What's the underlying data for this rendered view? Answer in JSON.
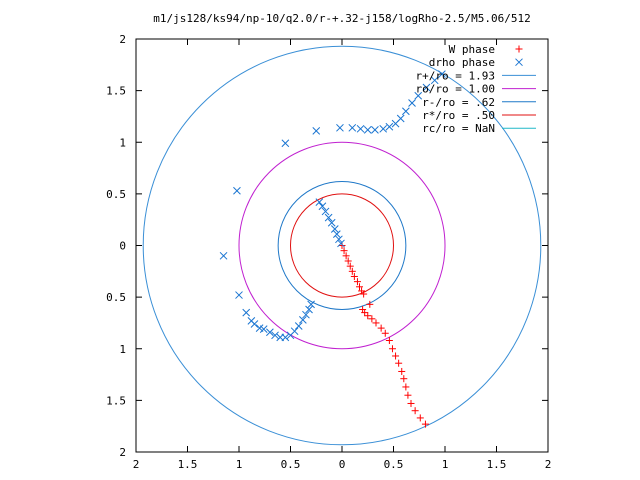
{
  "chart_data": {
    "type": "scatter",
    "title": "m1/js128/ks94/np-10/q2.0/r-+.32-j158/logRho-2.5/M5.06/512",
    "xlabel": "",
    "ylabel": "",
    "xlim": [
      -2,
      2
    ],
    "ylim": [
      -2,
      2
    ],
    "x_ticks": [
      {
        "value": -2,
        "label": "2"
      },
      {
        "value": -1.5,
        "label": "1.5"
      },
      {
        "value": -1,
        "label": "1"
      },
      {
        "value": -0.5,
        "label": "0.5"
      },
      {
        "value": 0,
        "label": "0"
      },
      {
        "value": 0.5,
        "label": "0.5"
      },
      {
        "value": 1,
        "label": "1"
      },
      {
        "value": 1.5,
        "label": "1.5"
      },
      {
        "value": 2,
        "label": "2"
      }
    ],
    "y_ticks": [
      {
        "value": 2,
        "label": "2"
      },
      {
        "value": 1.5,
        "label": "1.5"
      },
      {
        "value": 1,
        "label": "1"
      },
      {
        "value": 0.5,
        "label": "0.5"
      },
      {
        "value": 0,
        "label": "0"
      },
      {
        "value": -0.5,
        "label": "0.5"
      },
      {
        "value": -1,
        "label": "1"
      },
      {
        "value": -1.5,
        "label": "1.5"
      },
      {
        "value": -2,
        "label": "2"
      }
    ],
    "grid": false,
    "legend_position": "top-right",
    "series": [
      {
        "name": "W phase",
        "marker": "+",
        "color": "#ff0000",
        "points": [
          [
            0.0,
            0.0
          ],
          [
            0.02,
            -0.05
          ],
          [
            0.04,
            -0.1
          ],
          [
            0.06,
            -0.15
          ],
          [
            0.08,
            -0.2
          ],
          [
            0.1,
            -0.25
          ],
          [
            0.12,
            -0.3
          ],
          [
            0.15,
            -0.35
          ],
          [
            0.17,
            -0.4
          ],
          [
            0.19,
            -0.44
          ],
          [
            0.21,
            -0.47
          ],
          [
            0.27,
            -0.57
          ],
          [
            0.2,
            -0.62
          ],
          [
            0.22,
            -0.65
          ],
          [
            0.25,
            -0.68
          ],
          [
            0.29,
            -0.71
          ],
          [
            0.33,
            -0.75
          ],
          [
            0.38,
            -0.8
          ],
          [
            0.42,
            -0.85
          ],
          [
            0.46,
            -0.92
          ],
          [
            0.49,
            -1.0
          ],
          [
            0.52,
            -1.07
          ],
          [
            0.55,
            -1.14
          ],
          [
            0.58,
            -1.22
          ],
          [
            0.6,
            -1.29
          ],
          [
            0.62,
            -1.37
          ],
          [
            0.64,
            -1.45
          ],
          [
            0.67,
            -1.53
          ],
          [
            0.71,
            -1.6
          ],
          [
            0.76,
            -1.67
          ],
          [
            0.81,
            -1.73
          ]
        ]
      },
      {
        "name": "drho phase",
        "marker": "x",
        "color": "#1a75d1",
        "points": [
          [
            -0.22,
            0.42
          ],
          [
            -0.19,
            0.38
          ],
          [
            -0.16,
            0.33
          ],
          [
            -0.13,
            0.27
          ],
          [
            -0.1,
            0.22
          ],
          [
            -0.07,
            0.16
          ],
          [
            -0.05,
            0.11
          ],
          [
            -0.03,
            0.06
          ],
          [
            -0.01,
            0.02
          ],
          [
            -0.3,
            -0.57
          ],
          [
            -0.32,
            -0.62
          ],
          [
            -0.35,
            -0.67
          ],
          [
            -0.38,
            -0.72
          ],
          [
            -0.42,
            -0.78
          ],
          [
            -0.46,
            -0.83
          ],
          [
            -0.5,
            -0.87
          ],
          [
            -0.55,
            -0.89
          ],
          [
            -0.6,
            -0.89
          ],
          [
            -0.65,
            -0.87
          ],
          [
            -0.7,
            -0.84
          ],
          [
            -0.76,
            -0.81
          ],
          [
            -0.8,
            -0.8
          ],
          [
            -0.85,
            -0.76
          ],
          [
            -0.88,
            -0.73
          ],
          [
            -0.93,
            -0.65
          ],
          [
            -1.0,
            -0.48
          ],
          [
            -1.15,
            -0.1
          ],
          [
            -1.02,
            0.53
          ],
          [
            -0.55,
            0.99
          ],
          [
            -0.25,
            1.11
          ],
          [
            -0.02,
            1.14
          ],
          [
            0.1,
            1.14
          ],
          [
            0.18,
            1.13
          ],
          [
            0.25,
            1.12
          ],
          [
            0.32,
            1.12
          ],
          [
            0.4,
            1.13
          ],
          [
            0.46,
            1.15
          ],
          [
            0.52,
            1.18
          ],
          [
            0.57,
            1.23
          ],
          [
            0.62,
            1.3
          ],
          [
            0.68,
            1.38
          ],
          [
            0.74,
            1.45
          ],
          [
            0.82,
            1.53
          ],
          [
            0.9,
            1.6
          ],
          [
            0.97,
            1.66
          ]
        ]
      }
    ],
    "circles": [
      {
        "name": "r+/ro = 1.93",
        "radius": 1.93,
        "color": "#3a8fd6"
      },
      {
        "name": "ro/ro = 1.00",
        "radius": 1.0,
        "color": "#c020d0"
      },
      {
        "name": "r-/ro = .62",
        "radius": 0.62,
        "color": "#1f78c8"
      },
      {
        "name": "r*/ro = .50",
        "radius": 0.5,
        "color": "#e01010"
      },
      {
        "name": "rc/ro = NaN",
        "radius": null,
        "color": "#20b8c8"
      }
    ]
  }
}
